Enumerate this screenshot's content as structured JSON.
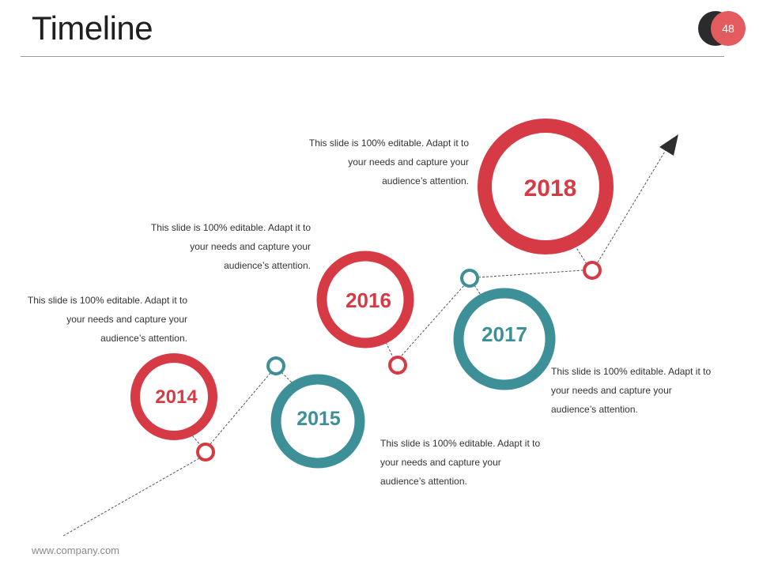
{
  "slide": {
    "title": "Timeline",
    "page_number": "48",
    "footer": "www.company.com"
  },
  "colors": {
    "red": "#d63b45",
    "teal": "#3e9098",
    "dark": "#2b2b2d"
  },
  "milestones": [
    {
      "year": "2014",
      "color": "red",
      "text": "This slide is 100% editable. Adapt it to your needs and capture your audience’s attention."
    },
    {
      "year": "2015",
      "color": "teal",
      "text": "This slide is 100% editable. Adapt it to your needs and capture your audience’s attention."
    },
    {
      "year": "2016",
      "color": "red",
      "text": "This slide is 100% editable. Adapt it to your needs and capture your audience’s attention."
    },
    {
      "year": "2017",
      "color": "teal",
      "text": "This slide is 100% editable. Adapt it to your needs and capture your audience’s attention."
    },
    {
      "year": "2018",
      "color": "red",
      "text": "This slide is 100% editable. Adapt it to your needs and capture your audience’s attention."
    }
  ]
}
